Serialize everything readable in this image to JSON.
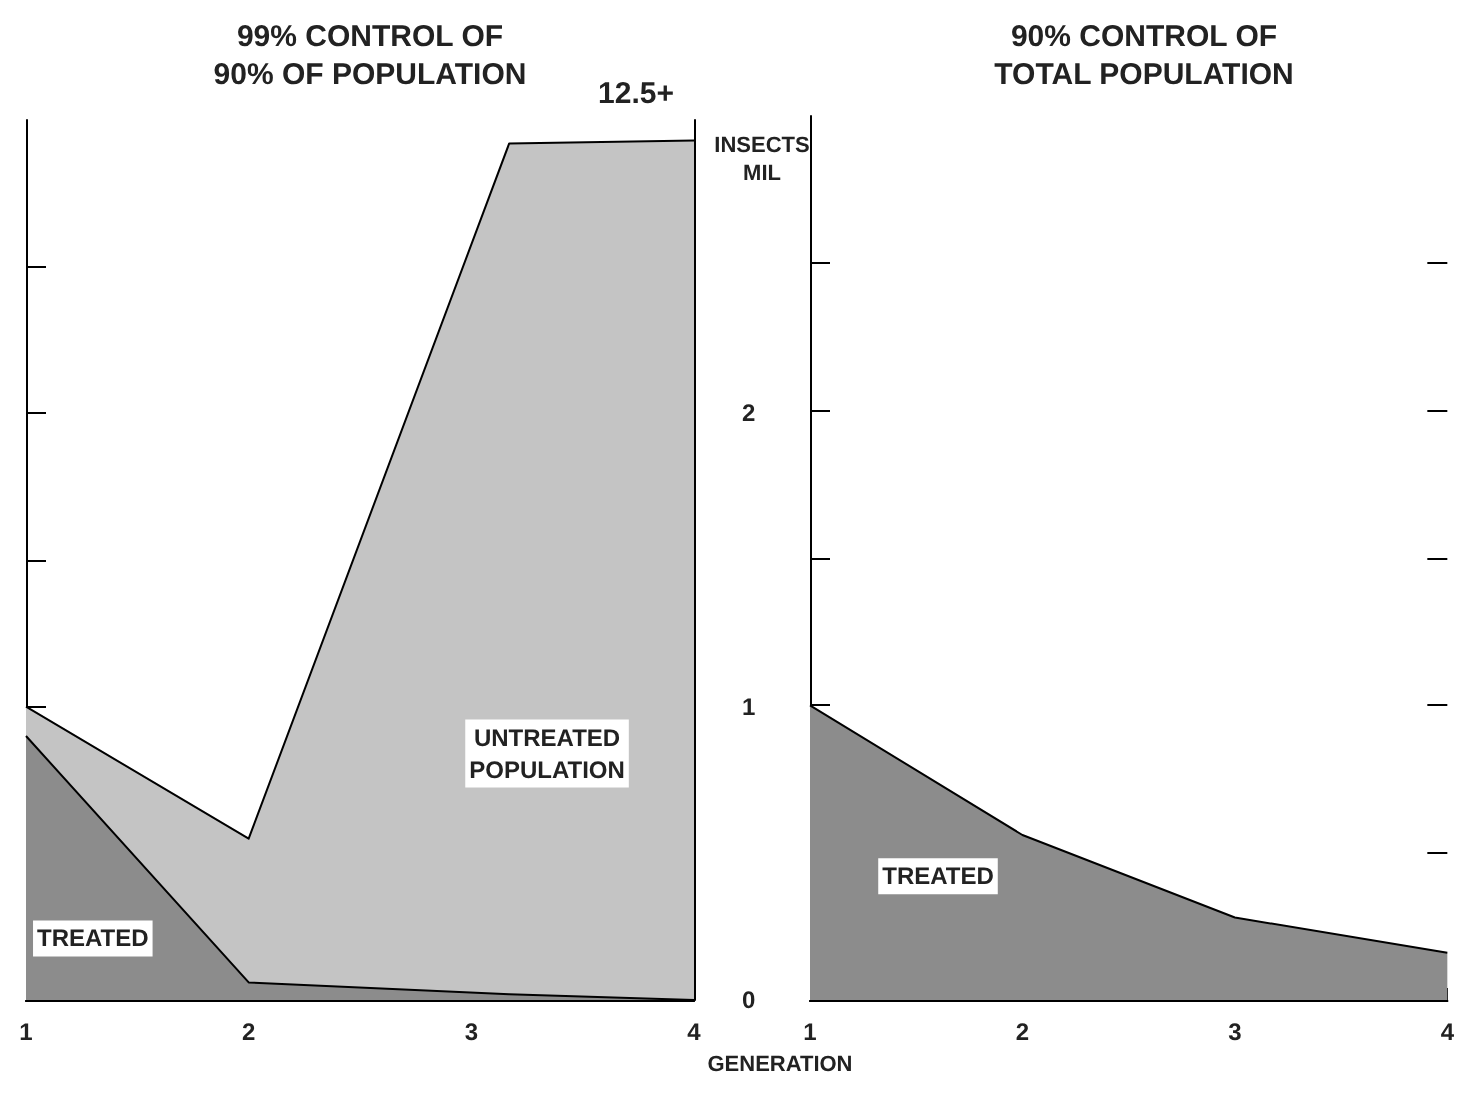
{
  "chart_data": [
    {
      "type": "area",
      "title": "99% CONTROL OF\n90% OF POPULATION",
      "xlabel": "GENERATION",
      "ylabel": "INSECTS\nMIL",
      "stacked": true,
      "marker": "none",
      "x": [
        1,
        2,
        3.17,
        4
      ],
      "series": [
        {
          "name": "TREATED",
          "color": "#8c8c8c",
          "values": [
            0.9,
            0.06,
            0.02,
            0
          ]
        },
        {
          "name": "UNTREATED\nPOPULATION",
          "color": "#c4c4c4",
          "values": [
            0.1,
            0.49,
            2.9,
            2.93
          ]
        }
      ],
      "annotations": [
        {
          "text": "12.5+",
          "x": 4,
          "y": 2.93
        }
      ],
      "xlim": [
        1,
        4
      ],
      "xticks": [
        1,
        2,
        3,
        4
      ],
      "ylim": [
        0,
        3
      ],
      "yticks": [
        0,
        {
          "value": 0.5,
          "label": null
        },
        1,
        {
          "value": 1.5,
          "label": null
        },
        2,
        {
          "value": 2.5,
          "label": null
        }
      ]
    },
    {
      "type": "area",
      "title": "90% CONTROL OF\nTOTAL POPULATION",
      "marker": "none",
      "tick_labels": "x",
      "x": [
        1,
        2,
        3,
        4
      ],
      "series": [
        {
          "name": "TREATED",
          "color": "#8c8c8c",
          "values": [
            1.0,
            0.56,
            0.28,
            0.16
          ]
        }
      ],
      "xlim": [
        1,
        4
      ],
      "xticks": [
        1,
        2,
        3,
        4
      ],
      "ylim": [
        0,
        3
      ],
      "yticks": [
        0,
        {
          "value": 0.5,
          "label": null
        },
        1,
        {
          "value": 1.5,
          "label": null
        },
        2,
        {
          "value": 2.5,
          "label": null
        }
      ]
    }
  ]
}
